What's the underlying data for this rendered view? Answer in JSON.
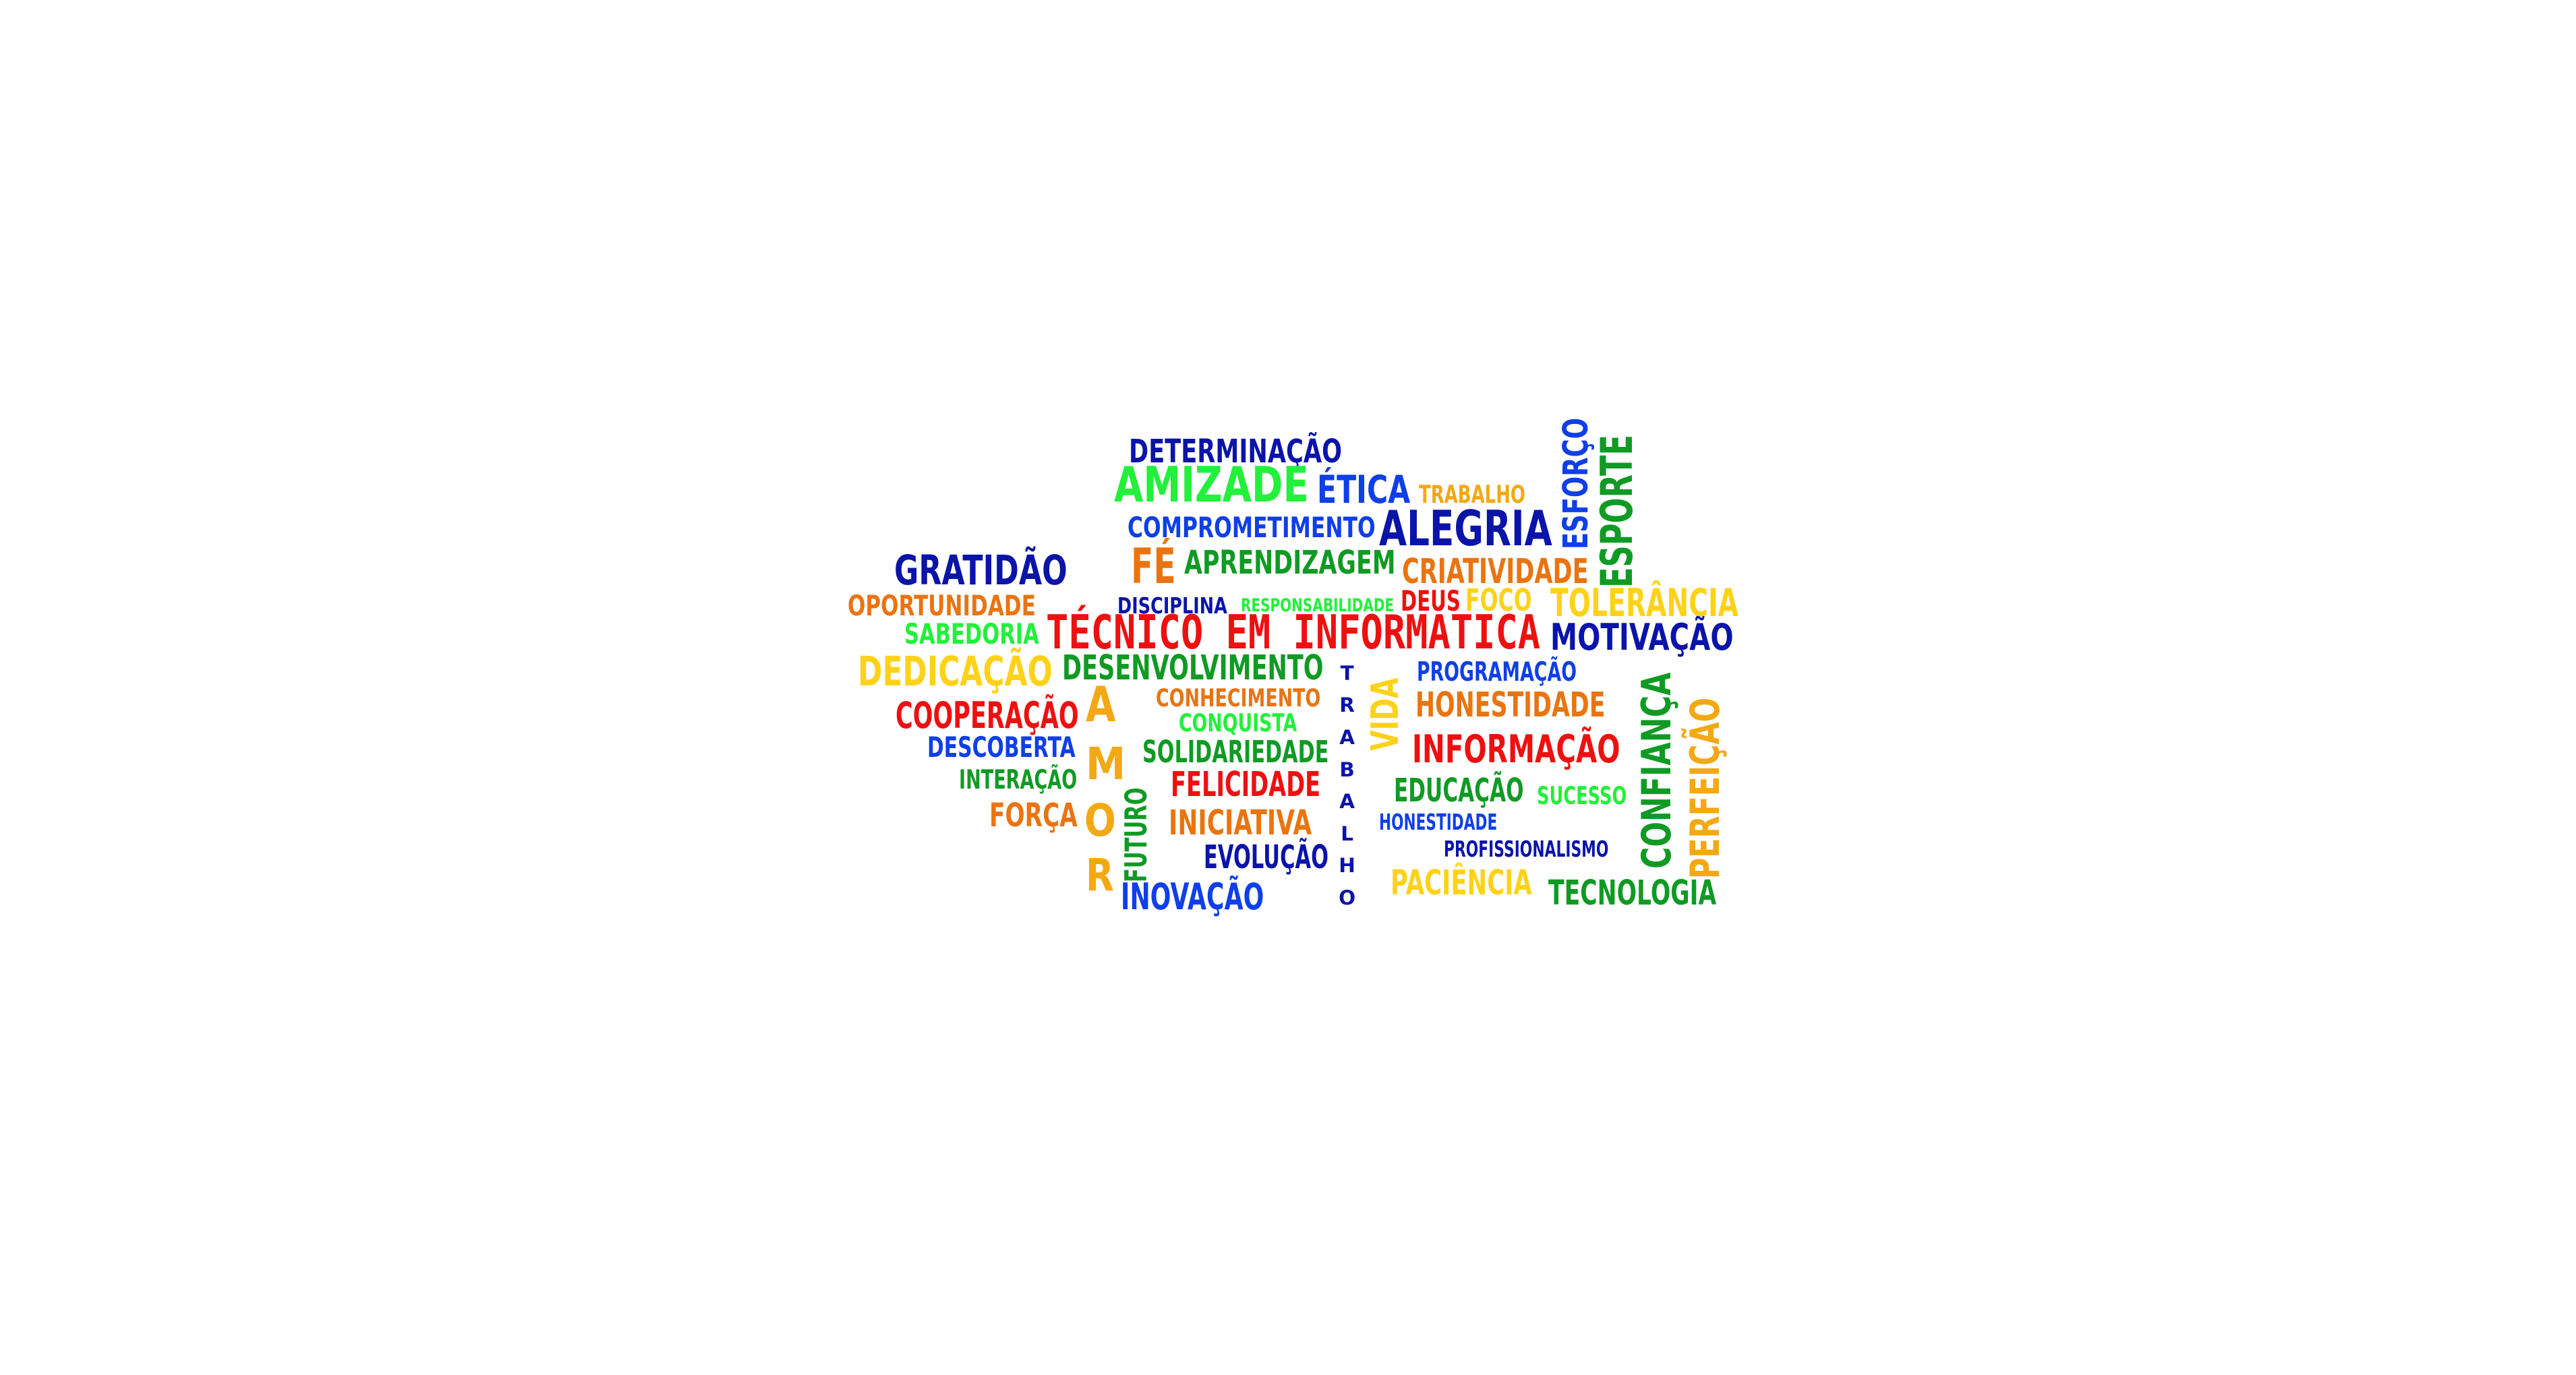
{
  "palette": {
    "navy": "#0a14a8",
    "blue": "#0f3fe6",
    "green": "#109a24",
    "lime": "#22f03a",
    "orange": "#ea7410",
    "amber": "#f4a814",
    "yellow": "#ffd21a",
    "red": "#ee1010"
  },
  "words": [
    {
      "id": "determinacao",
      "text": "DETERMINAÇÃO",
      "color": "navy"
    },
    {
      "id": "amizade",
      "text": "AMIZADE",
      "color": "lime"
    },
    {
      "id": "etica",
      "text": "ÉTICA",
      "color": "blue"
    },
    {
      "id": "trabalho-small",
      "text": "TRABALHO",
      "color": "amber"
    },
    {
      "id": "esforco",
      "text": "ESFORÇO",
      "color": "blue"
    },
    {
      "id": "esporte",
      "text": "ESPORTE",
      "color": "green"
    },
    {
      "id": "comprometimento",
      "text": "COMPROMETIMENTO",
      "color": "blue"
    },
    {
      "id": "alegria",
      "text": "ALEGRIA",
      "color": "navy"
    },
    {
      "id": "gratidao",
      "text": "GRATIDÃO",
      "color": "navy"
    },
    {
      "id": "fe",
      "text": "FÉ",
      "color": "orange"
    },
    {
      "id": "aprendizagem",
      "text": "APRENDIZAGEM",
      "color": "green"
    },
    {
      "id": "criatividade",
      "text": "CRIATIVIDADE",
      "color": "orange"
    },
    {
      "id": "oportunidade",
      "text": "OPORTUNIDADE",
      "color": "orange"
    },
    {
      "id": "disciplina",
      "text": "DISCIPLINA",
      "color": "navy"
    },
    {
      "id": "responsabilidade",
      "text": "RESPONSABILIDADE",
      "color": "lime"
    },
    {
      "id": "deus",
      "text": "DEUS",
      "color": "red"
    },
    {
      "id": "foco",
      "text": "FOCO",
      "color": "yellow"
    },
    {
      "id": "tolerancia",
      "text": "TOLERÂNCIA",
      "color": "yellow"
    },
    {
      "id": "sabedoria",
      "text": "SABEDORIA",
      "color": "lime"
    },
    {
      "id": "tecnico",
      "text": "TÉCNICO EM INFORMÁTICA",
      "color": "red"
    },
    {
      "id": "motivacao",
      "text": "MOTIVAÇÃO",
      "color": "navy"
    },
    {
      "id": "dedicacao",
      "text": "DEDICAÇÃO",
      "color": "yellow"
    },
    {
      "id": "desenvolvimento",
      "text": "DESENVOLVIMENTO",
      "color": "green"
    },
    {
      "id": "programacao",
      "text": "PROGRAMAÇÃO",
      "color": "blue"
    },
    {
      "id": "conhecimento",
      "text": "CONHECIMENTO",
      "color": "orange"
    },
    {
      "id": "honestidade-big",
      "text": "HONESTIDADE",
      "color": "orange"
    },
    {
      "id": "cooperacao",
      "text": "COOPERAÇÃO",
      "color": "red"
    },
    {
      "id": "conquista",
      "text": "CONQUISTA",
      "color": "lime"
    },
    {
      "id": "descoberta",
      "text": "DESCOBERTA",
      "color": "blue"
    },
    {
      "id": "solidariedade",
      "text": "SOLIDARIEDADE",
      "color": "green"
    },
    {
      "id": "informacao",
      "text": "INFORMAÇÃO",
      "color": "red"
    },
    {
      "id": "interacao",
      "text": "INTERAÇÃO",
      "color": "green"
    },
    {
      "id": "felicidade",
      "text": "FELICIDADE",
      "color": "red"
    },
    {
      "id": "educacao",
      "text": "EDUCAÇÃO",
      "color": "green"
    },
    {
      "id": "sucesso",
      "text": "SUCESSO",
      "color": "lime"
    },
    {
      "id": "forca",
      "text": "FORÇA",
      "color": "orange"
    },
    {
      "id": "iniciativa",
      "text": "INICIATIVA",
      "color": "orange"
    },
    {
      "id": "honestidade-small",
      "text": "HONESTIDADE",
      "color": "blue"
    },
    {
      "id": "evolucao",
      "text": "EVOLUÇÃO",
      "color": "navy"
    },
    {
      "id": "profissionalismo",
      "text": "PROFISSIONALISMO",
      "color": "navy"
    },
    {
      "id": "inovacao",
      "text": "INOVAÇÃO",
      "color": "blue"
    },
    {
      "id": "paciencia",
      "text": "PACIÊNCIA",
      "color": "yellow"
    },
    {
      "id": "tecnologia",
      "text": "TECNOLOGIA",
      "color": "green"
    },
    {
      "id": "futuro",
      "text": "FUTURO",
      "color": "green"
    },
    {
      "id": "vida",
      "text": "VIDA",
      "color": "yellow"
    },
    {
      "id": "confianca",
      "text": "CONFIANÇA",
      "color": "green"
    },
    {
      "id": "perfeicao",
      "text": "PERFEIÇÃO",
      "color": "amber"
    },
    {
      "id": "amor-a",
      "text": "A",
      "color": "amber"
    },
    {
      "id": "amor-m",
      "text": "M",
      "color": "amber"
    },
    {
      "id": "amor-o",
      "text": "O",
      "color": "amber"
    },
    {
      "id": "amor-r",
      "text": "R",
      "color": "amber"
    },
    {
      "id": "trabalho-vertical",
      "text": "TRABALHO",
      "color": "navy"
    }
  ]
}
